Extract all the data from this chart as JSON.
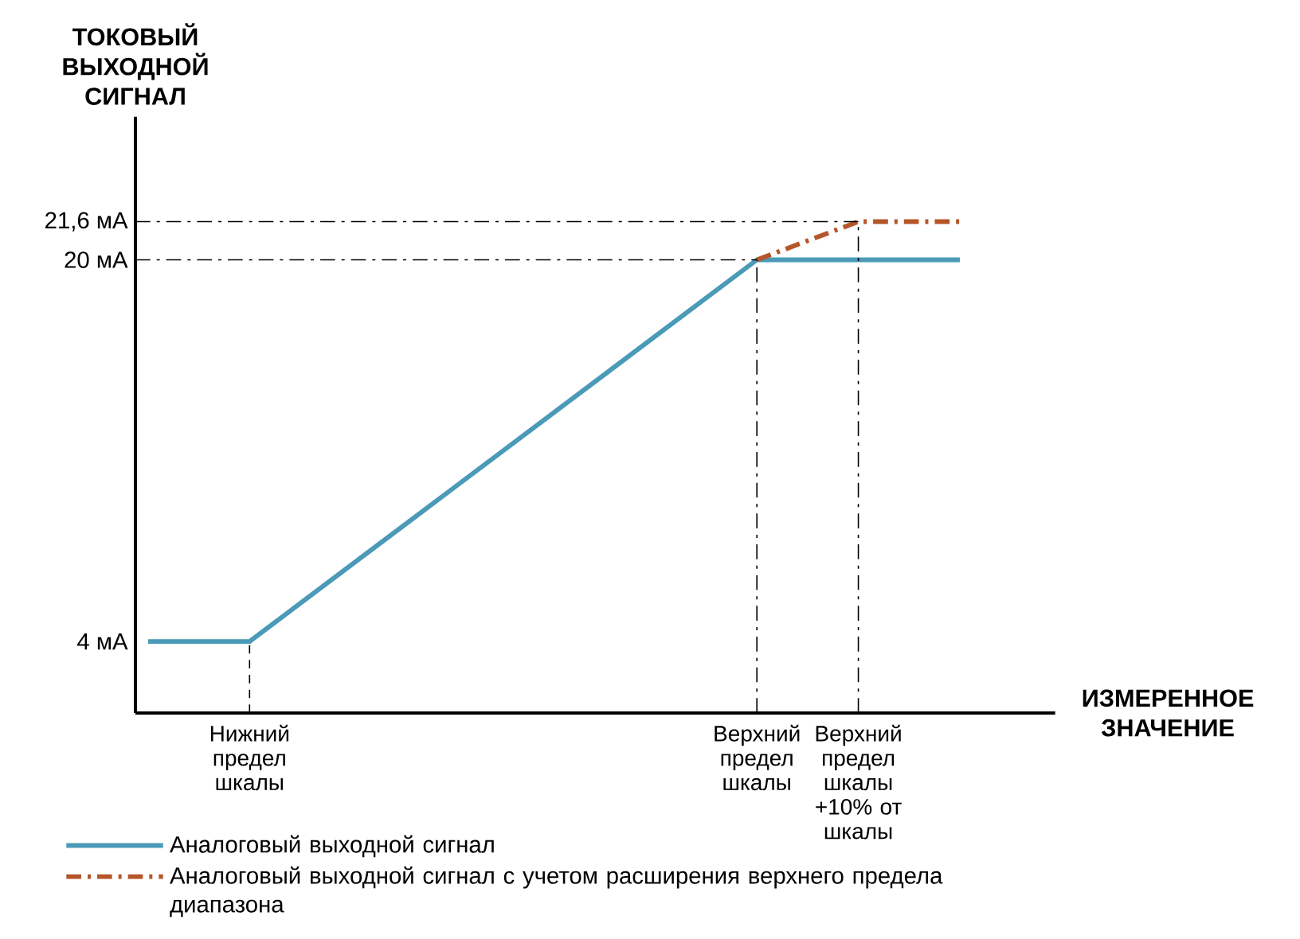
{
  "chart_data": {
    "type": "line",
    "ylabel": "ТОКОВЫЙ ВЫХОДНОЙ СИГНАЛ",
    "xlabel": "ИЗМЕРЕННОЕ ЗНАЧЕНИЕ",
    "categories": [
      null,
      "Нижний предел шкалы",
      null,
      null,
      null,
      null,
      "Верхний предел шкалы",
      "Верхний предел шкалы +10% от шкалы",
      null
    ],
    "ylim": [
      1,
      26
    ],
    "yticks": [
      {
        "value": 4,
        "label": "4 мА"
      },
      {
        "value": 20,
        "label": "20 мА"
      },
      {
        "value": 21.6,
        "label": "21,6 мА"
      }
    ],
    "series": [
      {
        "name": "Аналоговый выходной сигнал",
        "color": "#4a9ab8",
        "line_style": "solid",
        "values": [
          4,
          4,
          7.2,
          10.4,
          13.6,
          16.8,
          20,
          20,
          20
        ]
      },
      {
        "name": "Аналоговый выходной сигнал с учетом расширения верхнего предела диапазона",
        "color": "#b5562a",
        "line_style": "dashdot",
        "values": [
          null,
          null,
          null,
          null,
          null,
          null,
          20,
          21.6,
          21.6
        ]
      }
    ],
    "ref_lines": [
      {
        "axis": "y",
        "value": 20,
        "color": "#000000",
        "line_style": "dashdot"
      },
      {
        "axis": "y",
        "value": 21.6,
        "color": "#000000",
        "line_style": "dashdot"
      },
      {
        "axis": "x",
        "value": "Нижний предел шкалы",
        "color": "#000000",
        "line_style": "dashed"
      },
      {
        "axis": "x",
        "value": "Верхний предел шкалы",
        "color": "#000000",
        "line_style": "dashdot"
      },
      {
        "axis": "x",
        "value": "Верхний предел шкалы +10% от шкалы",
        "color": "#000000",
        "line_style": "dashdot"
      }
    ],
    "legend": "bottom left"
  }
}
